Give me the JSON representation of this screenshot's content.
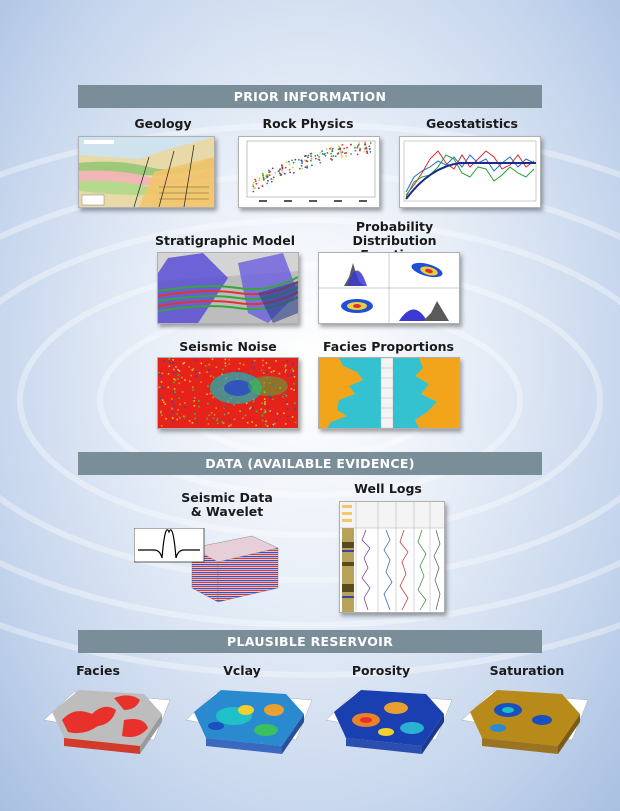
{
  "sections": {
    "prior": "PRIOR INFORMATION",
    "data": "DATA (AVAILABLE EVIDENCE)",
    "reservoir": "PLAUSIBLE RESERVOIR"
  },
  "prior_items": {
    "geology": "Geology",
    "rock_physics": "Rock Physics",
    "geostatistics": "Geostatistics",
    "stratigraphic_model": "Stratigraphic Model",
    "pdf_line1": "Probability Distribution",
    "pdf_line2": "Functions",
    "seismic_noise": "Seismic Noise",
    "facies_proportions": "Facies Proportions"
  },
  "data_items": {
    "seismic_line1": "Seismic Data",
    "seismic_line2": "& Wavelet",
    "well_logs": "Well Logs"
  },
  "reservoir_items": {
    "facies": "Facies",
    "vclay": "Vclay",
    "porosity": "Porosity",
    "saturation": "Saturation"
  },
  "colors": {
    "band": "#7a8e9a",
    "facies_sand": "#e8312a",
    "facies_shale": "#bdbdbd",
    "prop_orange": "#f2a51a",
    "prop_cyan": "#35c2d0"
  }
}
